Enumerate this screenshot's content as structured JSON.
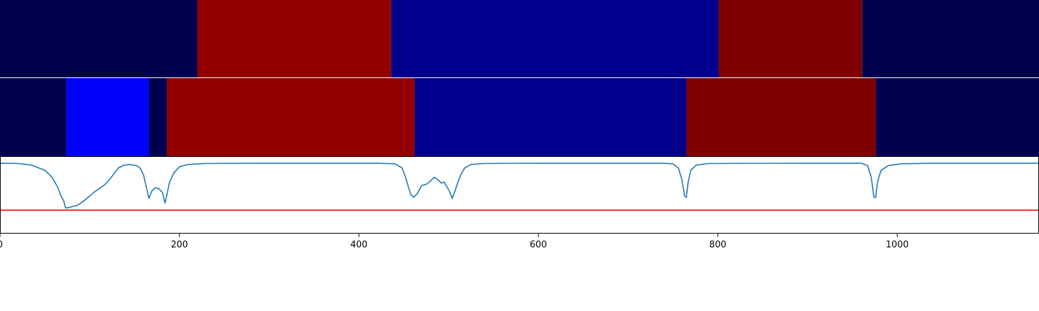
{
  "chart_data": [
    {
      "type": "heatmap",
      "xlim": [
        0,
        1158
      ],
      "segments": [
        {
          "start": 0,
          "end": 220,
          "color": "#000050"
        },
        {
          "start": 220,
          "end": 436,
          "color": "#920000"
        },
        {
          "start": 436,
          "end": 801,
          "color": "#00008c"
        },
        {
          "start": 801,
          "end": 961,
          "color": "#7e0000"
        },
        {
          "start": 961,
          "end": 1158,
          "color": "#000050"
        }
      ]
    },
    {
      "type": "heatmap",
      "xlim": [
        0,
        1158
      ],
      "segments": [
        {
          "start": 0,
          "end": 74,
          "color": "#000050"
        },
        {
          "start": 74,
          "end": 166,
          "color": "#0000ff"
        },
        {
          "start": 166,
          "end": 186,
          "color": "#000050"
        },
        {
          "start": 186,
          "end": 462,
          "color": "#920000"
        },
        {
          "start": 462,
          "end": 765,
          "color": "#00008c"
        },
        {
          "start": 765,
          "end": 976,
          "color": "#7e0000"
        },
        {
          "start": 976,
          "end": 1158,
          "color": "#000050"
        }
      ]
    },
    {
      "type": "line",
      "xlim": [
        0,
        1158
      ],
      "ylim": [
        -0.3,
        0.03
      ],
      "grid": false,
      "series": [
        {
          "color": "#1f77b4",
          "points": [
            [
              0,
              0
            ],
            [
              20,
              -0.001
            ],
            [
              35,
              -0.008
            ],
            [
              50,
              -0.03
            ],
            [
              58,
              -0.06
            ],
            [
              64,
              -0.1
            ],
            [
              68,
              -0.14
            ],
            [
              71,
              -0.16
            ],
            [
              73,
              -0.19
            ],
            [
              76,
              -0.19
            ],
            [
              80,
              -0.185
            ],
            [
              86,
              -0.18
            ],
            [
              92,
              -0.165
            ],
            [
              100,
              -0.14
            ],
            [
              106,
              -0.12
            ],
            [
              114,
              -0.1
            ],
            [
              120,
              -0.08
            ],
            [
              126,
              -0.05
            ],
            [
              132,
              -0.02
            ],
            [
              138,
              -0.008
            ],
            [
              145,
              -0.006
            ],
            [
              152,
              -0.01
            ],
            [
              156,
              -0.02
            ],
            [
              160,
              -0.05
            ],
            [
              163,
              -0.1
            ],
            [
              166,
              -0.15
            ],
            [
              169,
              -0.12
            ],
            [
              173,
              -0.105
            ],
            [
              177,
              -0.108
            ],
            [
              181,
              -0.125
            ],
            [
              184,
              -0.17
            ],
            [
              186,
              -0.135
            ],
            [
              189,
              -0.08
            ],
            [
              194,
              -0.04
            ],
            [
              200,
              -0.015
            ],
            [
              210,
              -0.005
            ],
            [
              230,
              -0.001
            ],
            [
              300,
              0
            ],
            [
              420,
              0
            ],
            [
              440,
              -0.002
            ],
            [
              448,
              -0.02
            ],
            [
              452,
              -0.06
            ],
            [
              455,
              -0.1
            ],
            [
              458,
              -0.135
            ],
            [
              461,
              -0.145
            ],
            [
              465,
              -0.13
            ],
            [
              470,
              -0.095
            ],
            [
              475,
              -0.09
            ],
            [
              480,
              -0.075
            ],
            [
              484,
              -0.06
            ],
            [
              488,
              -0.07
            ],
            [
              492,
              -0.085
            ],
            [
              495,
              -0.08
            ],
            [
              498,
              -0.1
            ],
            [
              501,
              -0.12
            ],
            [
              504,
              -0.15
            ],
            [
              507,
              -0.12
            ],
            [
              510,
              -0.085
            ],
            [
              514,
              -0.045
            ],
            [
              518,
              -0.02
            ],
            [
              525,
              -0.005
            ],
            [
              540,
              -0.001
            ],
            [
              600,
              0
            ],
            [
              740,
              0
            ],
            [
              750,
              -0.003
            ],
            [
              756,
              -0.02
            ],
            [
              760,
              -0.07
            ],
            [
              763,
              -0.14
            ],
            [
              765,
              -0.145
            ],
            [
              767,
              -0.08
            ],
            [
              770,
              -0.03
            ],
            [
              776,
              -0.008
            ],
            [
              790,
              -0.001
            ],
            [
              900,
              0
            ],
            [
              960,
              0
            ],
            [
              967,
              -0.01
            ],
            [
              971,
              -0.06
            ],
            [
              974,
              -0.145
            ],
            [
              976,
              -0.145
            ],
            [
              978,
              -0.08
            ],
            [
              982,
              -0.03
            ],
            [
              990,
              -0.01
            ],
            [
              1005,
              -0.002
            ],
            [
              1040,
              0
            ],
            [
              1158,
              0
            ]
          ]
        },
        {
          "color": "#ff0000",
          "points": [
            [
              0,
              -0.2
            ],
            [
              1158,
              -0.2
            ]
          ]
        }
      ],
      "xticks": [
        0,
        200,
        400,
        600,
        800,
        1000
      ],
      "xtick_labels": [
        "0",
        "200",
        "400",
        "600",
        "800",
        "1000"
      ]
    }
  ]
}
